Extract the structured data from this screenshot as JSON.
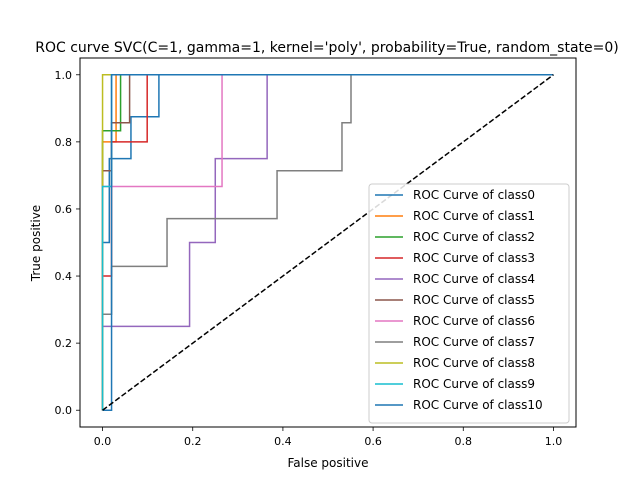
{
  "chart_data": {
    "type": "line",
    "title": "ROC curve SVC(C=1, gamma=1, kernel='poly', probability=True, random_state=0)",
    "xlabel": "False positive",
    "ylabel": "True positive",
    "xlim": [
      -0.05,
      1.05
    ],
    "ylim": [
      -0.05,
      1.05
    ],
    "xticks": [
      0.0,
      0.2,
      0.4,
      0.6,
      0.8,
      1.0
    ],
    "yticks": [
      0.0,
      0.2,
      0.4,
      0.6,
      0.8,
      1.0
    ],
    "xtick_labels": [
      "0.0",
      "0.2",
      "0.4",
      "0.6",
      "0.8",
      "1.0"
    ],
    "ytick_labels": [
      "0.0",
      "0.2",
      "0.4",
      "0.6",
      "0.8",
      "1.0"
    ],
    "legend_position": "lower-right",
    "diagonal": {
      "x": [
        0,
        1
      ],
      "y": [
        0,
        1
      ],
      "color": "#000000",
      "style": "dashed"
    },
    "series": [
      {
        "name": "ROC Curve of class0",
        "color": "#1f77b4",
        "x": [
          0,
          0,
          0.015,
          0.015,
          0.063,
          0.063,
          0.125,
          0.125,
          1
        ],
        "y": [
          0,
          0.5,
          0.5,
          0.75,
          0.75,
          0.875,
          0.875,
          1.0,
          1.0
        ]
      },
      {
        "name": "ROC Curve of class1",
        "color": "#ff7f0e",
        "x": [
          0,
          0,
          0.03,
          0.03,
          1
        ],
        "y": [
          0,
          0.8,
          0.8,
          1.0,
          1.0
        ]
      },
      {
        "name": "ROC Curve of class2",
        "color": "#2ca02c",
        "x": [
          0,
          0,
          0.04,
          0.04,
          1
        ],
        "y": [
          0,
          0.833,
          0.833,
          1.0,
          1.0
        ]
      },
      {
        "name": "ROC Curve of class3",
        "color": "#d62728",
        "x": [
          0,
          0,
          0.02,
          0.02,
          0.099,
          0.099,
          1
        ],
        "y": [
          0,
          0.4,
          0.4,
          0.8,
          0.8,
          1.0,
          1.0
        ]
      },
      {
        "name": "ROC Curve of class4",
        "color": "#9467bd",
        "x": [
          0,
          0,
          0.193,
          0.193,
          0.25,
          0.25,
          0.365,
          0.365,
          1
        ],
        "y": [
          0,
          0.25,
          0.25,
          0.5,
          0.5,
          0.75,
          0.75,
          1.0,
          1.0
        ]
      },
      {
        "name": "ROC Curve of class5",
        "color": "#8c564b",
        "x": [
          0,
          0,
          0.02,
          0.02,
          0.06,
          0.06,
          1
        ],
        "y": [
          0,
          0.714,
          0.714,
          0.857,
          0.857,
          1.0,
          1.0
        ]
      },
      {
        "name": "ROC Curve of class6",
        "color": "#e377c2",
        "x": [
          0,
          0,
          0.265,
          0.265,
          1
        ],
        "y": [
          0,
          0.667,
          0.667,
          1.0,
          1.0
        ]
      },
      {
        "name": "ROC Curve of class7",
        "color": "#7f7f7f",
        "x": [
          0,
          0,
          0.02,
          0.02,
          0.143,
          0.143,
          0.387,
          0.387,
          0.531,
          0.531,
          0.551,
          0.551,
          1
        ],
        "y": [
          0,
          0.286,
          0.286,
          0.429,
          0.429,
          0.571,
          0.571,
          0.714,
          0.714,
          0.857,
          0.857,
          1.0,
          1.0
        ]
      },
      {
        "name": "ROC Curve of class8",
        "color": "#bcbd22",
        "x": [
          0,
          0,
          1
        ],
        "y": [
          0,
          1.0,
          1.0
        ]
      },
      {
        "name": "ROC Curve of class9",
        "color": "#17becf",
        "x": [
          0,
          0,
          0.02,
          0.02,
          1
        ],
        "y": [
          0,
          0.667,
          0.667,
          1.0,
          1.0
        ]
      },
      {
        "name": "ROC Curve of class10",
        "color": "#1f77b4",
        "x": [
          0,
          0.02,
          0.02,
          1
        ],
        "y": [
          0,
          0,
          1.0,
          1.0
        ]
      }
    ]
  }
}
